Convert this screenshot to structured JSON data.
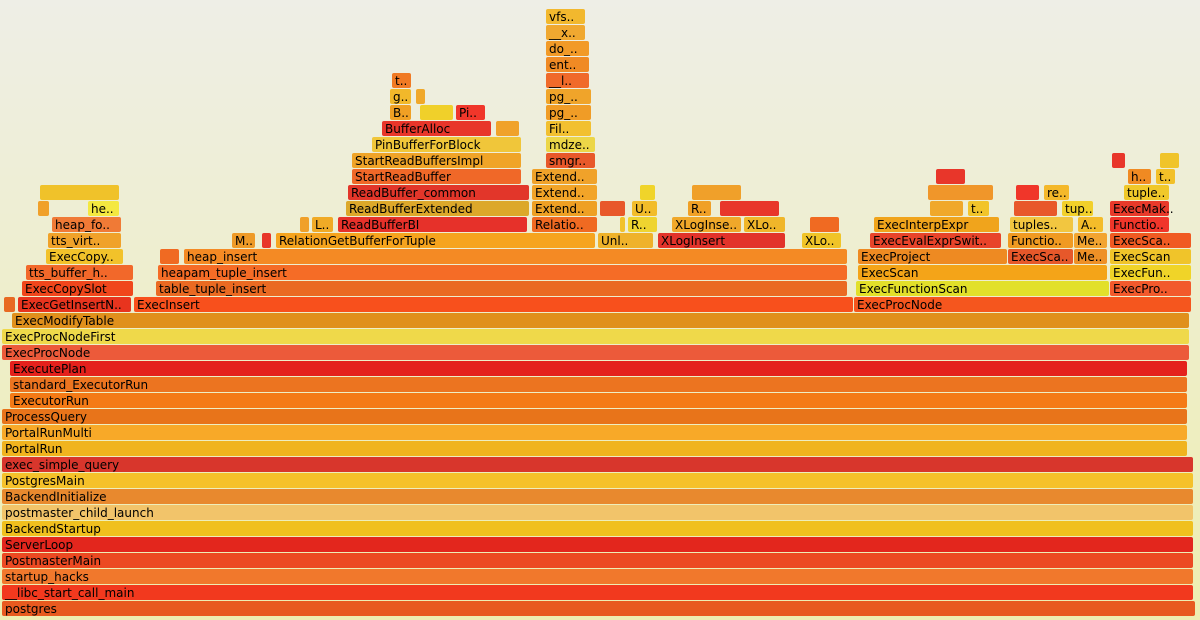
{
  "chart_data": {
    "type": "flamegraph",
    "xlim": [
      0,
      1200
    ],
    "frames": [
      {
        "name": "postgres",
        "depth": 0,
        "start": 2,
        "width": 1194,
        "color": "#e85a1f"
      },
      {
        "name": "__libc_start_call_main",
        "depth": 1,
        "start": 2,
        "width": 1192,
        "color": "#f2391e"
      },
      {
        "name": "startup_hacks",
        "depth": 2,
        "start": 2,
        "width": 1192,
        "color": "#f1782c"
      },
      {
        "name": "PostmasterMain",
        "depth": 3,
        "start": 2,
        "width": 1192,
        "color": "#ec4a22"
      },
      {
        "name": "ServerLoop",
        "depth": 4,
        "start": 2,
        "width": 1192,
        "color": "#e3261d"
      },
      {
        "name": "BackendStartup",
        "depth": 5,
        "start": 2,
        "width": 1192,
        "color": "#f0c01e"
      },
      {
        "name": "postmaster_child_launch",
        "depth": 6,
        "start": 2,
        "width": 1192,
        "color": "#f2c46a"
      },
      {
        "name": "BackendInitialize",
        "depth": 7,
        "start": 2,
        "width": 1192,
        "color": "#e8892e"
      },
      {
        "name": "PostgresMain",
        "depth": 8,
        "start": 2,
        "width": 1192,
        "color": "#f5c12a"
      },
      {
        "name": "exec_simple_query",
        "depth": 9,
        "start": 2,
        "width": 1192,
        "color": "#d8362c"
      },
      {
        "name": "PortalRun",
        "depth": 10,
        "start": 2,
        "width": 1186,
        "color": "#f0b41e"
      },
      {
        "name": "PortalRunMulti",
        "depth": 11,
        "start": 2,
        "width": 1186,
        "color": "#f8a928"
      },
      {
        "name": "ProcessQuery",
        "depth": 12,
        "start": 2,
        "width": 1186,
        "color": "#e8741a"
      },
      {
        "name": "ExecutorRun",
        "depth": 13,
        "start": 10,
        "width": 1178,
        "color": "#f47a16"
      },
      {
        "name": "standard_ExecutorRun",
        "depth": 14,
        "start": 10,
        "width": 1178,
        "color": "#ec7420"
      },
      {
        "name": "ExecutePlan",
        "depth": 15,
        "start": 10,
        "width": 1178,
        "color": "#e4211c"
      },
      {
        "name": "ExecProcNode",
        "depth": 16,
        "start": 2,
        "width": 1188,
        "color": "#ec5a3a"
      },
      {
        "name": "ExecProcNodeFirst",
        "depth": 17,
        "start": 2,
        "width": 1188,
        "color": "#efd94a"
      },
      {
        "name": "ExecModifyTable",
        "depth": 18,
        "start": 12,
        "width": 1178,
        "color": "#e0901c"
      },
      {
        "name": "ExecGetInsertN..",
        "depth": 19,
        "start": 18,
        "width": 114,
        "color": "#e8341e"
      },
      {
        "name": "ExecInsert",
        "depth": 19,
        "start": 134,
        "width": 720,
        "color": "#f8501c"
      },
      {
        "name": "ExecProcNode",
        "depth": 19,
        "start": 854,
        "width": 338,
        "color": "#f5561e"
      },
      {
        "name": "ExecCopySlot",
        "depth": 20,
        "start": 22,
        "width": 112,
        "color": "#f0461c"
      },
      {
        "name": "table_tuple_insert",
        "depth": 20,
        "start": 156,
        "width": 692,
        "color": "#ea6a22"
      },
      {
        "name": "ExecFunctionScan",
        "depth": 20,
        "start": 856,
        "width": 254,
        "color": "#e2e02a"
      },
      {
        "name": "ExecPro..",
        "depth": 20,
        "start": 1110,
        "width": 82,
        "color": "#f25a2c"
      },
      {
        "name": "tts_buffer_h..",
        "depth": 21,
        "start": 26,
        "width": 108,
        "color": "#f2682a"
      },
      {
        "name": "heapam_tuple_insert",
        "depth": 21,
        "start": 158,
        "width": 690,
        "color": "#f56c26"
      },
      {
        "name": "ExecScan",
        "depth": 21,
        "start": 858,
        "width": 250,
        "color": "#f4a418"
      },
      {
        "name": "ExecFun..",
        "depth": 21,
        "start": 1110,
        "width": 82,
        "color": "#f0d428"
      },
      {
        "name": "ExecCopy..",
        "depth": 22,
        "start": 46,
        "width": 78,
        "color": "#f2c22a"
      },
      {
        "name": "heap_insert",
        "depth": 22,
        "start": 184,
        "width": 664,
        "color": "#f48a24"
      },
      {
        "name": "ExecProject",
        "depth": 22,
        "start": 858,
        "width": 150,
        "color": "#ee8a22"
      },
      {
        "name": "ExecSca..",
        "depth": 22,
        "start": 1008,
        "width": 66,
        "color": "#e6582a"
      },
      {
        "name": "Me..",
        "depth": 22,
        "start": 1074,
        "width": 34,
        "color": "#ee9026"
      },
      {
        "name": "ExecScan",
        "depth": 22,
        "start": 1110,
        "width": 82,
        "color": "#f0c42a"
      },
      {
        "name": "tts_virt..",
        "depth": 23,
        "start": 48,
        "width": 74,
        "color": "#f0a22a"
      },
      {
        "name": "M..",
        "depth": 23,
        "start": 232,
        "width": 24,
        "color": "#ee9a28"
      },
      {
        "name": "RelationGetBufferForTuple",
        "depth": 23,
        "start": 276,
        "width": 320,
        "color": "#f6a41e"
      },
      {
        "name": "Unl..",
        "depth": 23,
        "start": 598,
        "width": 56,
        "color": "#efb22a"
      },
      {
        "name": "XLogInsert",
        "depth": 23,
        "start": 658,
        "width": 128,
        "color": "#e2332a"
      },
      {
        "name": "XLo..",
        "depth": 23,
        "start": 802,
        "width": 40,
        "color": "#f0c428"
      },
      {
        "name": "ExecEvalExprSwit..",
        "depth": 23,
        "start": 870,
        "width": 132,
        "color": "#e8442a"
      },
      {
        "name": "Functio..",
        "depth": 23,
        "start": 1008,
        "width": 66,
        "color": "#f09a22"
      },
      {
        "name": "Me..",
        "depth": 23,
        "start": 1074,
        "width": 34,
        "color": "#f2a430"
      },
      {
        "name": "ExecSca..",
        "depth": 23,
        "start": 1110,
        "width": 82,
        "color": "#f05a22"
      },
      {
        "name": "heap_fo..",
        "depth": 24,
        "start": 52,
        "width": 70,
        "color": "#f07a36"
      },
      {
        "name": "L..",
        "depth": 24,
        "start": 312,
        "width": 22,
        "color": "#f0aa26"
      },
      {
        "name": "ReadBufferBI",
        "depth": 24,
        "start": 338,
        "width": 190,
        "color": "#e6312a"
      },
      {
        "name": "Relatio..",
        "depth": 24,
        "start": 532,
        "width": 66,
        "color": "#f06a22"
      },
      {
        "name": "R..",
        "depth": 24,
        "start": 628,
        "width": 30,
        "color": "#efd430"
      },
      {
        "name": "XLogInse..",
        "depth": 24,
        "start": 672,
        "width": 70,
        "color": "#f0a82a"
      },
      {
        "name": "XLo..",
        "depth": 24,
        "start": 744,
        "width": 42,
        "color": "#f0b62a"
      },
      {
        "name": "ExecInterpExpr",
        "depth": 24,
        "start": 874,
        "width": 126,
        "color": "#f0a41c"
      },
      {
        "name": "tuples..",
        "depth": 24,
        "start": 1010,
        "width": 64,
        "color": "#f2c640"
      },
      {
        "name": "A..",
        "depth": 24,
        "start": 1078,
        "width": 26,
        "color": "#f4bc2a"
      },
      {
        "name": "Functio..",
        "depth": 24,
        "start": 1110,
        "width": 60,
        "color": "#f0362a"
      },
      {
        "name": "he..",
        "depth": 25,
        "start": 88,
        "width": 32,
        "color": "#f4e840"
      },
      {
        "name": "ReadBufferExtended",
        "depth": 25,
        "start": 346,
        "width": 184,
        "color": "#dca82a"
      },
      {
        "name": "Extend..",
        "depth": 25,
        "start": 532,
        "width": 66,
        "color": "#eea024"
      },
      {
        "name": "U..",
        "depth": 25,
        "start": 632,
        "width": 26,
        "color": "#f2bc2a"
      },
      {
        "name": "R..",
        "depth": 25,
        "start": 688,
        "width": 24,
        "color": "#f0a026"
      },
      {
        "name": "t..",
        "depth": 25,
        "start": 968,
        "width": 22,
        "color": "#f2c42a"
      },
      {
        "name": "tup..",
        "depth": 25,
        "start": 1062,
        "width": 32,
        "color": "#f2d02a"
      },
      {
        "name": "ExecMak..",
        "depth": 25,
        "start": 1110,
        "width": 60,
        "color": "#e83a2a"
      },
      {
        "name": "ReadBuffer_common",
        "depth": 26,
        "start": 348,
        "width": 182,
        "color": "#e2362a"
      },
      {
        "name": "Extend..",
        "depth": 26,
        "start": 532,
        "width": 66,
        "color": "#f2a428"
      },
      {
        "name": "re..",
        "depth": 26,
        "start": 1044,
        "width": 26,
        "color": "#f4b82a"
      },
      {
        "name": "tuple..",
        "depth": 26,
        "start": 1124,
        "width": 46,
        "color": "#f0c82a"
      },
      {
        "name": "StartReadBuffer",
        "depth": 27,
        "start": 352,
        "width": 170,
        "color": "#f06828"
      },
      {
        "name": "Extend..",
        "depth": 27,
        "start": 532,
        "width": 66,
        "color": "#f0a22a"
      },
      {
        "name": "h..",
        "depth": 27,
        "start": 1128,
        "width": 24,
        "color": "#f08a22"
      },
      {
        "name": "t..",
        "depth": 27,
        "start": 1156,
        "width": 20,
        "color": "#f2c028"
      },
      {
        "name": "StartReadBuffersImpl",
        "depth": 28,
        "start": 352,
        "width": 170,
        "color": "#f0a428"
      },
      {
        "name": "smgr..",
        "depth": 28,
        "start": 546,
        "width": 50,
        "color": "#e8582a"
      },
      {
        "name": "PinBufferForBlock",
        "depth": 29,
        "start": 372,
        "width": 150,
        "color": "#f0c63a"
      },
      {
        "name": "mdze..",
        "depth": 29,
        "start": 546,
        "width": 50,
        "color": "#ecd648"
      },
      {
        "name": "BufferAlloc",
        "depth": 30,
        "start": 382,
        "width": 110,
        "color": "#e8362a"
      },
      {
        "name": "Fil..",
        "depth": 30,
        "start": 546,
        "width": 46,
        "color": "#f2c030"
      },
      {
        "name": "B..",
        "depth": 31,
        "start": 390,
        "width": 22,
        "color": "#f0a024"
      },
      {
        "name": "Pi..",
        "depth": 31,
        "start": 456,
        "width": 30,
        "color": "#f0362a"
      },
      {
        "name": "pg_..",
        "depth": 31,
        "start": 546,
        "width": 46,
        "color": "#f09c26"
      },
      {
        "name": "g..",
        "depth": 32,
        "start": 390,
        "width": 22,
        "color": "#f2b82a"
      },
      {
        "name": "pg_..",
        "depth": 32,
        "start": 546,
        "width": 46,
        "color": "#f0a42a"
      },
      {
        "name": "t..",
        "depth": 33,
        "start": 392,
        "width": 20,
        "color": "#f07a24"
      },
      {
        "name": "__l..",
        "depth": 33,
        "start": 546,
        "width": 44,
        "color": "#f06a2a"
      },
      {
        "name": "ent..",
        "depth": 34,
        "start": 546,
        "width": 44,
        "color": "#f08a24"
      },
      {
        "name": "do_..",
        "depth": 35,
        "start": 546,
        "width": 44,
        "color": "#f29a28"
      },
      {
        "name": "__x..",
        "depth": 36,
        "start": 546,
        "width": 40,
        "color": "#f0a830"
      },
      {
        "name": "vfs..",
        "depth": 37,
        "start": 546,
        "width": 40,
        "color": "#f2b82e"
      },
      {
        "name": null,
        "depth": 19,
        "start": 4,
        "width": 12,
        "color": "#e86a22"
      },
      {
        "name": null,
        "depth": 22,
        "start": 160,
        "width": 20,
        "color": "#f06a22"
      },
      {
        "name": null,
        "depth": 23,
        "start": 262,
        "width": 10,
        "color": "#e8362a"
      },
      {
        "name": null,
        "depth": 24,
        "start": 300,
        "width": 10,
        "color": "#f0a02a"
      },
      {
        "name": null,
        "depth": 24,
        "start": 620,
        "width": 6,
        "color": "#f2c22a"
      },
      {
        "name": null,
        "depth": 25,
        "start": 600,
        "width": 26,
        "color": "#e8582a"
      },
      {
        "name": null,
        "depth": 26,
        "start": 640,
        "width": 16,
        "color": "#f0d42a"
      },
      {
        "name": null,
        "depth": 24,
        "start": 810,
        "width": 30,
        "color": "#f06a22"
      },
      {
        "name": null,
        "depth": 25,
        "start": 720,
        "width": 60,
        "color": "#e8362a"
      },
      {
        "name": null,
        "depth": 26,
        "start": 692,
        "width": 50,
        "color": "#f0a02a"
      },
      {
        "name": null,
        "depth": 25,
        "start": 930,
        "width": 34,
        "color": "#f0a82a"
      },
      {
        "name": null,
        "depth": 26,
        "start": 928,
        "width": 66,
        "color": "#f0962a"
      },
      {
        "name": null,
        "depth": 27,
        "start": 936,
        "width": 30,
        "color": "#e8362a"
      },
      {
        "name": null,
        "depth": 25,
        "start": 1014,
        "width": 44,
        "color": "#e8582a"
      },
      {
        "name": null,
        "depth": 26,
        "start": 1016,
        "width": 24,
        "color": "#f0362a"
      },
      {
        "name": null,
        "depth": 25,
        "start": 38,
        "width": 12,
        "color": "#f0a02a"
      },
      {
        "name": null,
        "depth": 26,
        "start": 40,
        "width": 80,
        "color": "#f0c22a"
      },
      {
        "name": null,
        "depth": 30,
        "start": 496,
        "width": 24,
        "color": "#f0a22a"
      },
      {
        "name": null,
        "depth": 31,
        "start": 420,
        "width": 34,
        "color": "#f0d02a"
      },
      {
        "name": null,
        "depth": 32,
        "start": 416,
        "width": 10,
        "color": "#f0a82a"
      },
      {
        "name": null,
        "depth": 28,
        "start": 1112,
        "width": 14,
        "color": "#e8362a"
      },
      {
        "name": null,
        "depth": 28,
        "start": 1160,
        "width": 20,
        "color": "#f0c42a"
      }
    ]
  }
}
